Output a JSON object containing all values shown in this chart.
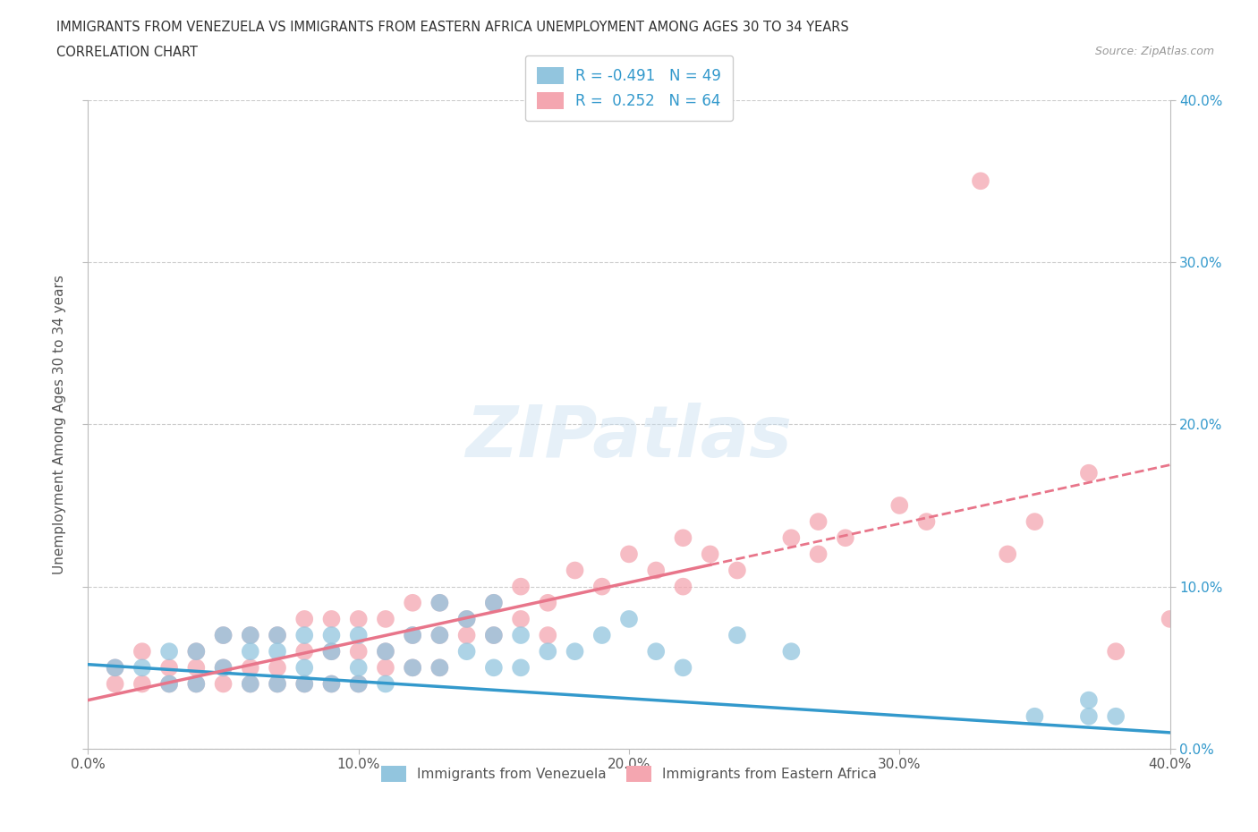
{
  "title_line1": "IMMIGRANTS FROM VENEZUELA VS IMMIGRANTS FROM EASTERN AFRICA UNEMPLOYMENT AMONG AGES 30 TO 34 YEARS",
  "title_line2": "CORRELATION CHART",
  "source_text": "Source: ZipAtlas.com",
  "ylabel": "Unemployment Among Ages 30 to 34 years",
  "xmin": 0.0,
  "xmax": 0.4,
  "ymin": 0.0,
  "ymax": 0.4,
  "xticks": [
    0.0,
    0.1,
    0.2,
    0.3,
    0.4
  ],
  "xtick_labels": [
    "0.0%",
    "10.0%",
    "20.0%",
    "30.0%",
    "40.0%"
  ],
  "yticks": [
    0.0,
    0.1,
    0.2,
    0.3,
    0.4
  ],
  "ytick_labels_right": [
    "0.0%",
    "10.0%",
    "20.0%",
    "30.0%",
    "40.0%"
  ],
  "watermark": "ZIPatlas",
  "venezuela_color": "#92c5de",
  "eastern_africa_color": "#f4a6b0",
  "venezuela_R": -0.491,
  "venezuela_N": 49,
  "eastern_africa_R": 0.252,
  "eastern_africa_N": 64,
  "venezuela_line_color": "#3399cc",
  "eastern_africa_line_color": "#e8758a",
  "legend_label_venezuela": "Immigrants from Venezuela",
  "legend_label_eastern_africa": "Immigrants from Eastern Africa",
  "background_color": "#ffffff",
  "grid_color": "#cccccc",
  "venezuela_x": [
    0.01,
    0.02,
    0.03,
    0.03,
    0.04,
    0.04,
    0.05,
    0.05,
    0.06,
    0.06,
    0.06,
    0.07,
    0.07,
    0.07,
    0.08,
    0.08,
    0.08,
    0.09,
    0.09,
    0.09,
    0.1,
    0.1,
    0.1,
    0.11,
    0.11,
    0.12,
    0.12,
    0.13,
    0.13,
    0.13,
    0.14,
    0.14,
    0.15,
    0.15,
    0.15,
    0.16,
    0.16,
    0.17,
    0.18,
    0.19,
    0.2,
    0.21,
    0.22,
    0.24,
    0.26,
    0.35,
    0.37,
    0.37,
    0.38
  ],
  "venezuela_y": [
    0.05,
    0.05,
    0.06,
    0.04,
    0.06,
    0.04,
    0.07,
    0.05,
    0.06,
    0.04,
    0.07,
    0.06,
    0.04,
    0.07,
    0.05,
    0.07,
    0.04,
    0.06,
    0.04,
    0.07,
    0.05,
    0.07,
    0.04,
    0.06,
    0.04,
    0.05,
    0.07,
    0.05,
    0.07,
    0.09,
    0.06,
    0.08,
    0.05,
    0.07,
    0.09,
    0.05,
    0.07,
    0.06,
    0.06,
    0.07,
    0.08,
    0.06,
    0.05,
    0.07,
    0.06,
    0.02,
    0.02,
    0.03,
    0.02
  ],
  "eastern_africa_x": [
    0.01,
    0.01,
    0.02,
    0.02,
    0.03,
    0.03,
    0.04,
    0.04,
    0.04,
    0.05,
    0.05,
    0.05,
    0.06,
    0.06,
    0.06,
    0.07,
    0.07,
    0.07,
    0.08,
    0.08,
    0.08,
    0.09,
    0.09,
    0.09,
    0.1,
    0.1,
    0.1,
    0.11,
    0.11,
    0.11,
    0.12,
    0.12,
    0.12,
    0.13,
    0.13,
    0.13,
    0.14,
    0.14,
    0.15,
    0.15,
    0.16,
    0.16,
    0.17,
    0.17,
    0.18,
    0.19,
    0.2,
    0.21,
    0.22,
    0.22,
    0.23,
    0.24,
    0.26,
    0.27,
    0.27,
    0.28,
    0.3,
    0.31,
    0.33,
    0.34,
    0.35,
    0.37,
    0.38,
    0.4
  ],
  "eastern_africa_y": [
    0.05,
    0.04,
    0.06,
    0.04,
    0.05,
    0.04,
    0.06,
    0.05,
    0.04,
    0.07,
    0.05,
    0.04,
    0.07,
    0.05,
    0.04,
    0.07,
    0.05,
    0.04,
    0.08,
    0.06,
    0.04,
    0.08,
    0.06,
    0.04,
    0.08,
    0.06,
    0.04,
    0.08,
    0.06,
    0.05,
    0.09,
    0.07,
    0.05,
    0.09,
    0.07,
    0.05,
    0.08,
    0.07,
    0.09,
    0.07,
    0.1,
    0.08,
    0.09,
    0.07,
    0.11,
    0.1,
    0.12,
    0.11,
    0.13,
    0.1,
    0.12,
    0.11,
    0.13,
    0.12,
    0.14,
    0.13,
    0.15,
    0.14,
    0.35,
    0.12,
    0.14,
    0.17,
    0.06,
    0.08
  ]
}
